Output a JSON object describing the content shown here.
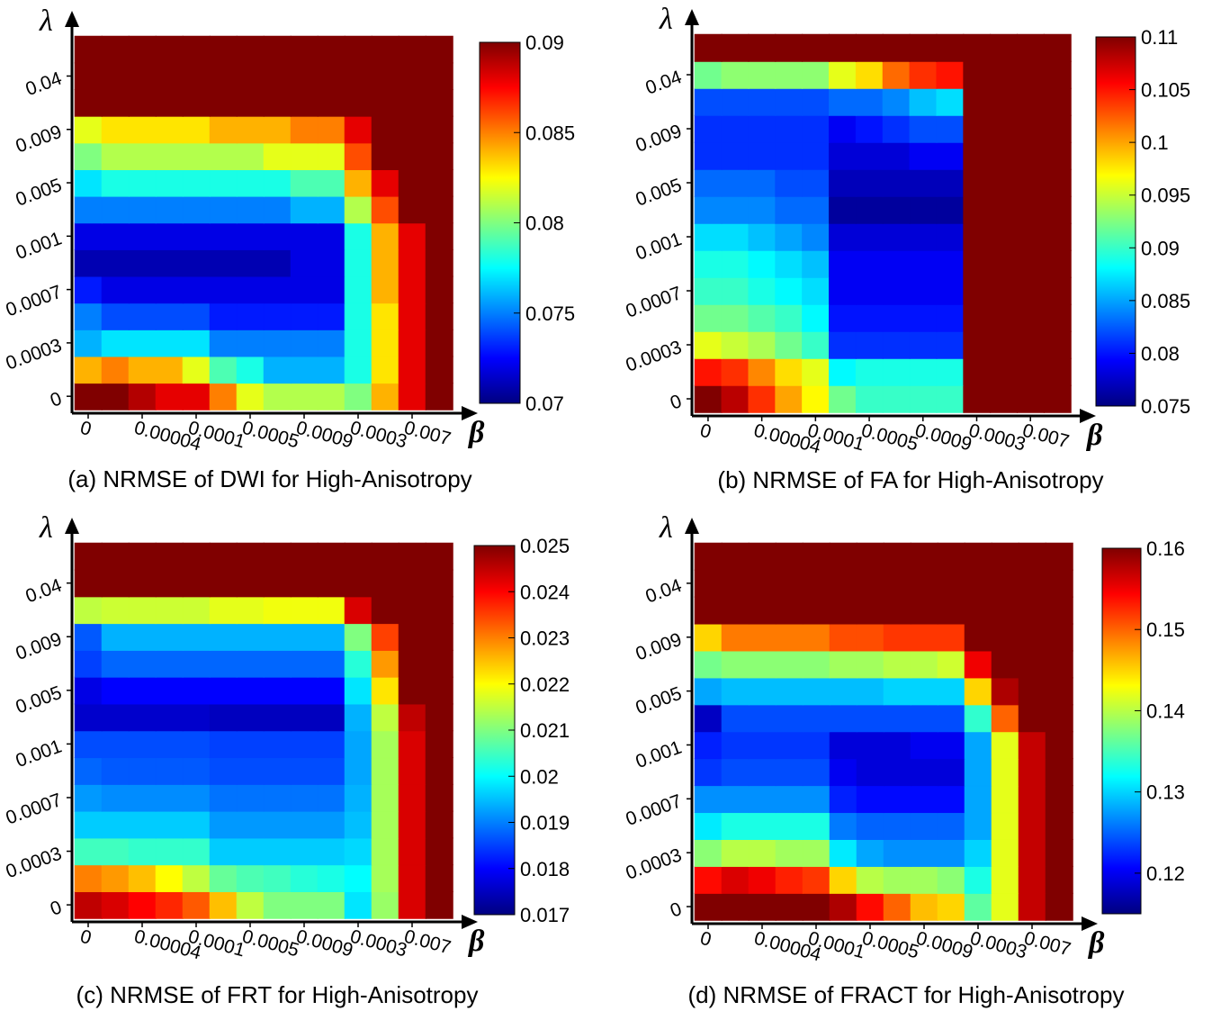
{
  "chart_data": [
    {
      "type": "heatmap",
      "title": "(a) NRMSE of DWI for High-Anisotropy",
      "x_label": "β",
      "y_label": "λ",
      "colormap": "jet",
      "x": [
        "0",
        null,
        "0.00004",
        null,
        "0.0001",
        null,
        "0.0005",
        null,
        "0.0009",
        null,
        "0.0003",
        null,
        "0.007",
        null
      ],
      "y": [
        "0",
        null,
        "0.0003",
        null,
        "0.0007",
        null,
        "0.001",
        null,
        "0.005",
        null,
        "0.009",
        null,
        "0.04",
        null
      ],
      "zlim": [
        0.07,
        0.09
      ],
      "zticks": [
        0.07,
        0.075,
        0.08,
        0.085,
        0.09
      ],
      "values": [
        [
          0.09,
          0.09,
          0.089,
          0.088,
          0.088,
          0.085,
          0.082,
          0.081,
          0.081,
          0.081,
          0.08,
          0.084,
          0.088,
          0.09
        ],
        [
          0.084,
          0.085,
          0.084,
          0.084,
          0.082,
          0.079,
          0.078,
          0.076,
          0.076,
          0.076,
          0.078,
          0.083,
          0.088,
          0.09
        ],
        [
          0.076,
          0.077,
          0.077,
          0.077,
          0.077,
          0.075,
          0.075,
          0.075,
          0.075,
          0.075,
          0.078,
          0.083,
          0.088,
          0.09
        ],
        [
          0.075,
          0.074,
          0.074,
          0.074,
          0.074,
          0.073,
          0.073,
          0.073,
          0.073,
          0.073,
          0.078,
          0.083,
          0.088,
          0.09
        ],
        [
          0.073,
          0.072,
          0.072,
          0.072,
          0.072,
          0.072,
          0.072,
          0.072,
          0.072,
          0.072,
          0.078,
          0.084,
          0.088,
          0.09
        ],
        [
          0.071,
          0.071,
          0.071,
          0.071,
          0.071,
          0.071,
          0.071,
          0.071,
          0.072,
          0.072,
          0.078,
          0.084,
          0.088,
          0.09
        ],
        [
          0.072,
          0.072,
          0.072,
          0.072,
          0.072,
          0.072,
          0.072,
          0.072,
          0.072,
          0.072,
          0.078,
          0.084,
          0.088,
          0.09
        ],
        [
          0.075,
          0.075,
          0.075,
          0.075,
          0.075,
          0.075,
          0.075,
          0.075,
          0.076,
          0.076,
          0.081,
          0.086,
          0.09,
          0.09
        ],
        [
          0.077,
          0.078,
          0.078,
          0.078,
          0.078,
          0.078,
          0.078,
          0.078,
          0.079,
          0.079,
          0.084,
          0.088,
          0.09,
          0.09
        ],
        [
          0.08,
          0.081,
          0.081,
          0.081,
          0.081,
          0.081,
          0.081,
          0.082,
          0.082,
          0.082,
          0.086,
          0.09,
          0.09,
          0.09
        ],
        [
          0.082,
          0.083,
          0.083,
          0.083,
          0.083,
          0.084,
          0.084,
          0.084,
          0.085,
          0.085,
          0.088,
          0.09,
          0.09,
          0.09
        ],
        [
          0.09,
          0.09,
          0.09,
          0.09,
          0.09,
          0.09,
          0.09,
          0.09,
          0.09,
          0.09,
          0.09,
          0.09,
          0.09,
          0.09
        ],
        [
          0.09,
          0.09,
          0.09,
          0.09,
          0.09,
          0.09,
          0.09,
          0.09,
          0.09,
          0.09,
          0.09,
          0.09,
          0.09,
          0.09
        ],
        [
          0.09,
          0.09,
          0.09,
          0.09,
          0.09,
          0.09,
          0.09,
          0.09,
          0.09,
          0.09,
          0.09,
          0.09,
          0.09,
          0.09
        ]
      ]
    },
    {
      "type": "heatmap",
      "title": "(b) NRMSE of FA for High-Anisotropy",
      "x_label": "β",
      "y_label": "λ",
      "colormap": "jet",
      "x": [
        "0",
        null,
        "0.00004",
        null,
        "0.0001",
        null,
        "0.0005",
        null,
        "0.0009",
        null,
        "0.0003",
        null,
        "0.007",
        null
      ],
      "y": [
        "0",
        null,
        "0.0003",
        null,
        "0.0007",
        null,
        "0.001",
        null,
        "0.005",
        null,
        "0.009",
        null,
        "0.04",
        null
      ],
      "zlim": [
        0.075,
        0.11
      ],
      "zticks": [
        0.075,
        0.08,
        0.085,
        0.09,
        0.095,
        0.1,
        0.105,
        0.11
      ],
      "values": [
        [
          0.11,
          0.108,
          0.104,
          0.1,
          0.097,
          0.092,
          0.09,
          0.09,
          0.09,
          0.09,
          0.11,
          0.11,
          0.11,
          0.11
        ],
        [
          0.105,
          0.104,
          0.101,
          0.098,
          0.096,
          0.088,
          0.089,
          0.089,
          0.089,
          0.089,
          0.11,
          0.11,
          0.11,
          0.11
        ],
        [
          0.096,
          0.095,
          0.094,
          0.092,
          0.09,
          0.081,
          0.081,
          0.081,
          0.081,
          0.081,
          0.11,
          0.11,
          0.11,
          0.11
        ],
        [
          0.092,
          0.092,
          0.091,
          0.09,
          0.088,
          0.08,
          0.08,
          0.08,
          0.08,
          0.08,
          0.11,
          0.11,
          0.11,
          0.11
        ],
        [
          0.09,
          0.09,
          0.089,
          0.088,
          0.087,
          0.079,
          0.079,
          0.079,
          0.079,
          0.079,
          0.11,
          0.11,
          0.11,
          0.11
        ],
        [
          0.089,
          0.089,
          0.088,
          0.087,
          0.086,
          0.079,
          0.079,
          0.079,
          0.079,
          0.079,
          0.11,
          0.11,
          0.11,
          0.11
        ],
        [
          0.087,
          0.087,
          0.086,
          0.085,
          0.084,
          0.078,
          0.078,
          0.078,
          0.078,
          0.078,
          0.11,
          0.11,
          0.11,
          0.11
        ],
        [
          0.084,
          0.084,
          0.084,
          0.083,
          0.083,
          0.076,
          0.076,
          0.076,
          0.076,
          0.076,
          0.11,
          0.11,
          0.11,
          0.11
        ],
        [
          0.083,
          0.083,
          0.083,
          0.082,
          0.082,
          0.077,
          0.077,
          0.077,
          0.077,
          0.077,
          0.11,
          0.11,
          0.11,
          0.11
        ],
        [
          0.081,
          0.081,
          0.081,
          0.081,
          0.081,
          0.078,
          0.078,
          0.078,
          0.079,
          0.079,
          0.11,
          0.11,
          0.11,
          0.11
        ],
        [
          0.081,
          0.081,
          0.081,
          0.081,
          0.081,
          0.079,
          0.08,
          0.081,
          0.082,
          0.082,
          0.11,
          0.11,
          0.11,
          0.11
        ],
        [
          0.082,
          0.082,
          0.082,
          0.082,
          0.082,
          0.083,
          0.083,
          0.084,
          0.086,
          0.087,
          0.11,
          0.11,
          0.11,
          0.11
        ],
        [
          0.092,
          0.093,
          0.093,
          0.093,
          0.093,
          0.096,
          0.098,
          0.102,
          0.104,
          0.105,
          0.11,
          0.11,
          0.11,
          0.11
        ],
        [
          0.11,
          0.11,
          0.11,
          0.11,
          0.11,
          0.11,
          0.11,
          0.11,
          0.11,
          0.11,
          0.11,
          0.11,
          0.11,
          0.11
        ]
      ]
    },
    {
      "type": "heatmap",
      "title": "(c) NRMSE of FRT for High-Anisotropy",
      "x_label": "β",
      "y_label": "λ",
      "colormap": "jet",
      "x": [
        "0",
        null,
        "0.00004",
        null,
        "0.0001",
        null,
        "0.0005",
        null,
        "0.0009",
        null,
        "0.0003",
        null,
        "0.007",
        null
      ],
      "y": [
        "0",
        null,
        "0.0003",
        null,
        "0.0007",
        null,
        "0.001",
        null,
        "0.005",
        null,
        "0.009",
        null,
        "0.04",
        null
      ],
      "zlim": [
        0.017,
        0.025
      ],
      "zticks": [
        0.017,
        0.018,
        0.019,
        0.02,
        0.021,
        0.022,
        0.023,
        0.024,
        0.025
      ],
      "values": [
        [
          0.0245,
          0.0243,
          0.024,
          0.0237,
          0.0233,
          0.0225,
          0.0215,
          0.021,
          0.021,
          0.021,
          0.0198,
          0.0212,
          0.0243,
          0.025
        ],
        [
          0.023,
          0.0228,
          0.0225,
          0.022,
          0.0215,
          0.0208,
          0.0206,
          0.0205,
          0.0203,
          0.0202,
          0.02,
          0.0213,
          0.0243,
          0.025
        ],
        [
          0.0205,
          0.0205,
          0.0204,
          0.0204,
          0.0204,
          0.0196,
          0.0196,
          0.0196,
          0.0196,
          0.0196,
          0.0197,
          0.0213,
          0.0243,
          0.025
        ],
        [
          0.0196,
          0.0196,
          0.0196,
          0.0196,
          0.0196,
          0.0192,
          0.0192,
          0.0192,
          0.0192,
          0.0192,
          0.0195,
          0.0213,
          0.0243,
          0.025
        ],
        [
          0.0192,
          0.0191,
          0.0191,
          0.0191,
          0.0191,
          0.0189,
          0.0189,
          0.0189,
          0.0189,
          0.0189,
          0.0194,
          0.0213,
          0.0243,
          0.025
        ],
        [
          0.0188,
          0.0187,
          0.0187,
          0.0187,
          0.0187,
          0.0186,
          0.0186,
          0.0186,
          0.0186,
          0.0186,
          0.0193,
          0.0213,
          0.0243,
          0.025
        ],
        [
          0.0186,
          0.0186,
          0.0186,
          0.0186,
          0.0186,
          0.0185,
          0.0185,
          0.0185,
          0.0185,
          0.0185,
          0.0193,
          0.0213,
          0.0243,
          0.025
        ],
        [
          0.0176,
          0.0176,
          0.0176,
          0.0176,
          0.0176,
          0.0175,
          0.0175,
          0.0175,
          0.0175,
          0.0175,
          0.0194,
          0.0215,
          0.0245,
          0.025
        ],
        [
          0.0178,
          0.018,
          0.018,
          0.018,
          0.018,
          0.018,
          0.018,
          0.018,
          0.018,
          0.018,
          0.0198,
          0.0222,
          0.025,
          0.025
        ],
        [
          0.0185,
          0.0188,
          0.0188,
          0.0188,
          0.0188,
          0.0188,
          0.0188,
          0.0188,
          0.0188,
          0.0188,
          0.0203,
          0.0228,
          0.025,
          0.025
        ],
        [
          0.0187,
          0.0194,
          0.0194,
          0.0194,
          0.0194,
          0.0194,
          0.0194,
          0.0194,
          0.0194,
          0.0194,
          0.021,
          0.0235,
          0.025,
          0.025
        ],
        [
          0.0215,
          0.0216,
          0.0216,
          0.0216,
          0.0216,
          0.0218,
          0.0218,
          0.0219,
          0.0219,
          0.0219,
          0.0243,
          0.025,
          0.025,
          0.025
        ],
        [
          0.025,
          0.025,
          0.025,
          0.025,
          0.025,
          0.025,
          0.025,
          0.025,
          0.025,
          0.025,
          0.025,
          0.025,
          0.025,
          0.025
        ],
        [
          0.025,
          0.025,
          0.025,
          0.025,
          0.025,
          0.025,
          0.025,
          0.025,
          0.025,
          0.025,
          0.025,
          0.025,
          0.025,
          0.025
        ]
      ]
    },
    {
      "type": "heatmap",
      "title": "(d) NRMSE of FRACT for High-Anisotropy",
      "x_label": "β",
      "y_label": "λ",
      "colormap": "jet",
      "x": [
        "0",
        null,
        "0.00004",
        null,
        "0.0001",
        null,
        "0.0005",
        null,
        "0.0009",
        null,
        "0.0003",
        null,
        "0.007",
        null
      ],
      "y": [
        "0",
        null,
        "0.0003",
        null,
        "0.0007",
        null,
        "0.001",
        null,
        "0.005",
        null,
        "0.009",
        null,
        "0.04",
        null
      ],
      "zlim": [
        0.115,
        0.16
      ],
      "zticks": [
        0.12,
        0.13,
        0.14,
        0.15,
        0.16
      ],
      "values": [
        [
          0.16,
          0.16,
          0.16,
          0.16,
          0.16,
          0.158,
          0.154,
          0.15,
          0.146,
          0.145,
          0.136,
          0.142,
          0.157,
          0.16
        ],
        [
          0.154,
          0.156,
          0.155,
          0.153,
          0.152,
          0.145,
          0.14,
          0.139,
          0.139,
          0.138,
          0.133,
          0.142,
          0.157,
          0.16
        ],
        [
          0.138,
          0.14,
          0.14,
          0.139,
          0.139,
          0.131,
          0.128,
          0.127,
          0.127,
          0.127,
          0.13,
          0.142,
          0.157,
          0.16
        ],
        [
          0.131,
          0.133,
          0.133,
          0.133,
          0.133,
          0.126,
          0.125,
          0.125,
          0.125,
          0.125,
          0.128,
          0.142,
          0.157,
          0.16
        ],
        [
          0.127,
          0.127,
          0.127,
          0.127,
          0.127,
          0.122,
          0.121,
          0.121,
          0.121,
          0.121,
          0.128,
          0.142,
          0.157,
          0.16
        ],
        [
          0.123,
          0.124,
          0.124,
          0.124,
          0.124,
          0.12,
          0.119,
          0.119,
          0.119,
          0.119,
          0.128,
          0.142,
          0.157,
          0.16
        ],
        [
          0.122,
          0.123,
          0.123,
          0.123,
          0.123,
          0.119,
          0.119,
          0.119,
          0.12,
          0.12,
          0.128,
          0.142,
          0.157,
          0.16
        ],
        [
          0.118,
          0.124,
          0.124,
          0.124,
          0.124,
          0.124,
          0.124,
          0.124,
          0.124,
          0.124,
          0.134,
          0.15,
          0.16,
          0.16
        ],
        [
          0.128,
          0.129,
          0.129,
          0.129,
          0.129,
          0.129,
          0.129,
          0.13,
          0.13,
          0.13,
          0.145,
          0.158,
          0.16,
          0.16
        ],
        [
          0.137,
          0.138,
          0.138,
          0.138,
          0.138,
          0.139,
          0.139,
          0.14,
          0.14,
          0.141,
          0.155,
          0.16,
          0.16,
          0.16
        ],
        [
          0.145,
          0.149,
          0.149,
          0.149,
          0.149,
          0.151,
          0.151,
          0.152,
          0.152,
          0.152,
          0.16,
          0.16,
          0.16,
          0.16
        ],
        [
          0.16,
          0.16,
          0.16,
          0.16,
          0.16,
          0.16,
          0.16,
          0.16,
          0.16,
          0.16,
          0.16,
          0.16,
          0.16,
          0.16
        ],
        [
          0.16,
          0.16,
          0.16,
          0.16,
          0.16,
          0.16,
          0.16,
          0.16,
          0.16,
          0.16,
          0.16,
          0.16,
          0.16,
          0.16
        ],
        [
          0.16,
          0.16,
          0.16,
          0.16,
          0.16,
          0.16,
          0.16,
          0.16,
          0.16,
          0.16,
          0.16,
          0.16,
          0.16,
          0.16
        ]
      ]
    }
  ]
}
